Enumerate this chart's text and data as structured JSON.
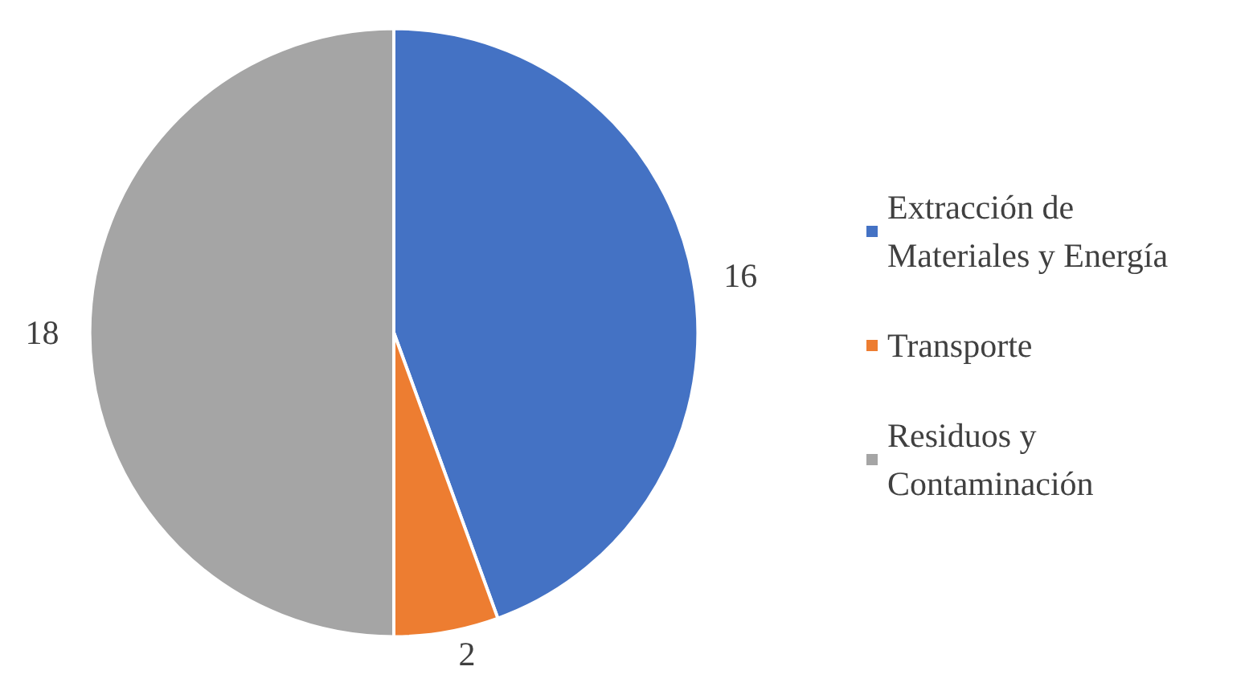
{
  "chart_data": {
    "type": "pie",
    "categories": [
      "Extracción de Materiales y Energía",
      "Transporte",
      "Residuos y Contaminación"
    ],
    "values": [
      16,
      2,
      18
    ],
    "colors": [
      "#4472c4",
      "#ed7d31",
      "#a5a5a5"
    ],
    "data_labels": true,
    "legend": "right"
  }
}
